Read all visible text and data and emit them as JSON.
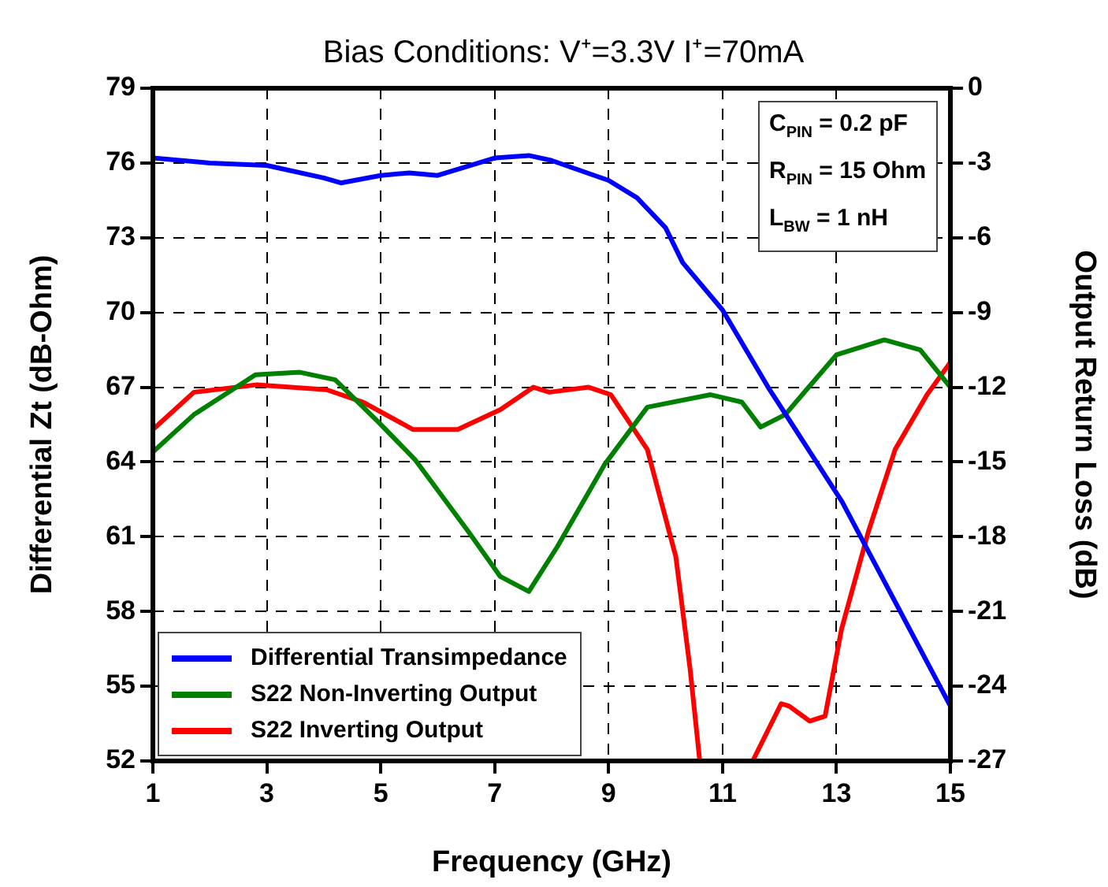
{
  "chart_data": {
    "type": "line",
    "title": "Bias Conditions: V⁺=3.3V I⁺=70mA",
    "xlabel": "Frequency (GHz)",
    "ylabel": "Differential Zt (dB-Ohm)",
    "y2label": "Output Return Loss (dB)",
    "xlim": [
      1,
      15
    ],
    "xticks": [
      1,
      3,
      5,
      7,
      9,
      11,
      13,
      15
    ],
    "ylim": [
      52,
      79
    ],
    "yticks": [
      52,
      55,
      58,
      61,
      64,
      67,
      70,
      73,
      76,
      79
    ],
    "y2lim": [
      -27,
      0
    ],
    "y2ticks": [
      -27,
      -24,
      -21,
      -18,
      -15,
      -12,
      -9,
      -6,
      -3,
      0
    ],
    "grid": true,
    "legend": "bottom left",
    "line_style": "solid",
    "marker": "none",
    "annotations": [
      "C$_{PIN}$ = 0.2 pF",
      "R$_{PIN}$ = 15 Ohm",
      "L$_{BW}$ = 1 nH"
    ],
    "series": [
      {
        "name": "Differential Transimpedance",
        "color": "#0000ff",
        "x": [
          1,
          2,
          3,
          4,
          4.3,
          5,
          5.5,
          6,
          7,
          7.6,
          8,
          9,
          9.5,
          10,
          10.3,
          11,
          11.8,
          13.1,
          15
        ],
        "values": [
          76.2,
          76.0,
          75.9,
          75.4,
          75.2,
          75.5,
          75.6,
          75.5,
          76.2,
          76.3,
          76.1,
          75.3,
          74.6,
          73.4,
          72.0,
          70.1,
          67.0,
          62.4,
          54.2
        ]
      },
      {
        "name": "S22 Non-Inverting Output",
        "color": "#008000",
        "axis": "y2",
        "x": [
          1,
          1.72,
          2.8,
          3.58,
          4.2,
          4.96,
          5.6,
          6.54,
          7.1,
          7.6,
          8.1,
          8.93,
          9.68,
          10.79,
          11.34,
          11.67,
          12.1,
          13.0,
          13.84,
          14.47,
          15
        ],
        "values": [
          -14.6,
          -13.1,
          -11.5,
          -11.4,
          -11.7,
          -13.4,
          -14.9,
          -17.8,
          -19.6,
          -20.2,
          -18.4,
          -15.1,
          -12.8,
          -12.3,
          -12.6,
          -13.6,
          -13.1,
          -10.7,
          -10.1,
          -10.5,
          -12.0
        ]
      },
      {
        "name": "S22 Inverting Output",
        "color": "#ff0000",
        "axis": "y2",
        "x": [
          1,
          1.72,
          2.83,
          4.05,
          4.69,
          5.57,
          6.35,
          7.1,
          7.68,
          7.96,
          8.65,
          9.04,
          9.68,
          10.18,
          10.43,
          10.6,
          11,
          11.53,
          12.03,
          12.17,
          12.53,
          12.8,
          13.09,
          13.56,
          14.03,
          14.59,
          15
        ],
        "values": [
          -13.7,
          -12.2,
          -11.9,
          -12.1,
          -12.6,
          -13.7,
          -13.7,
          -12.9,
          -12.0,
          -12.2,
          -12.0,
          -12.3,
          -14.5,
          -18.8,
          -23.3,
          -27,
          null,
          -27,
          -24.7,
          -24.8,
          -25.4,
          -25.2,
          -21.7,
          -17.8,
          -14.5,
          -12.3,
          -11.0
        ]
      }
    ]
  }
}
